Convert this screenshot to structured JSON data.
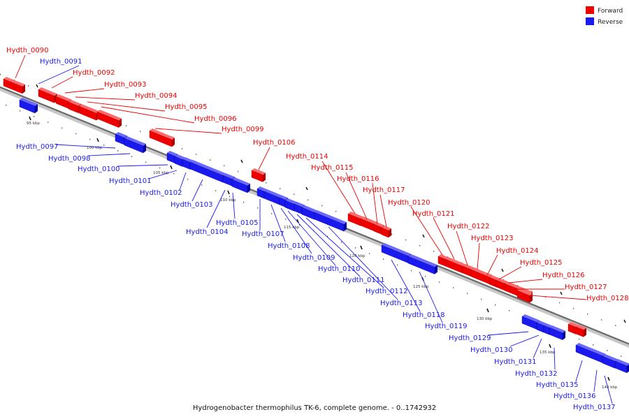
{
  "colors": {
    "forward": "#ee0000",
    "forward_dark": "#aa0000",
    "forward_light": "#ff6a6a",
    "reverse": "#1a1aee",
    "reverse_dark": "#0000a0",
    "reverse_light": "#6a6aff",
    "axis": "#777777"
  },
  "legend": [
    {
      "key": "forward",
      "label": "Forward"
    },
    {
      "key": "reverse",
      "label": "Reverse"
    }
  ],
  "caption": "Hydrogenobacter thermophilus TK-6, complete genome. - 0..1742932",
  "ticks": [
    "95 kbp",
    "100 kbp",
    "105 kbp",
    "110 kbp",
    "115 kbp",
    "120 kbp",
    "125 kbp",
    "130 kbp",
    "135 kbp",
    "140 kbp"
  ],
  "genes": [
    {
      "name": "Hydth_0090",
      "strand": "forward"
    },
    {
      "name": "Hydth_0091",
      "strand": "reverse"
    },
    {
      "name": "Hydth_0092",
      "strand": "forward"
    },
    {
      "name": "Hydth_0093",
      "strand": "forward"
    },
    {
      "name": "Hydth_0094",
      "strand": "forward"
    },
    {
      "name": "Hydth_0095",
      "strand": "forward"
    },
    {
      "name": "Hydth_0096",
      "strand": "forward"
    },
    {
      "name": "Hydth_0099",
      "strand": "forward"
    },
    {
      "name": "Hydth_0097",
      "strand": "reverse"
    },
    {
      "name": "Hydth_0098",
      "strand": "reverse"
    },
    {
      "name": "Hydth_0100",
      "strand": "reverse"
    },
    {
      "name": "Hydth_0101",
      "strand": "reverse"
    },
    {
      "name": "Hydth_0102",
      "strand": "reverse"
    },
    {
      "name": "Hydth_0103",
      "strand": "reverse"
    },
    {
      "name": "Hydth_0104",
      "strand": "reverse"
    },
    {
      "name": "Hydth_0105",
      "strand": "reverse"
    },
    {
      "name": "Hydth_0106",
      "strand": "forward"
    },
    {
      "name": "Hydth_0107",
      "strand": "reverse"
    },
    {
      "name": "Hydth_0108",
      "strand": "reverse"
    },
    {
      "name": "Hydth_0109",
      "strand": "reverse"
    },
    {
      "name": "Hydth_0110",
      "strand": "reverse"
    },
    {
      "name": "Hydth_0111",
      "strand": "reverse"
    },
    {
      "name": "Hydth_0112",
      "strand": "reverse"
    },
    {
      "name": "Hydth_0113",
      "strand": "reverse"
    },
    {
      "name": "Hydth_0114",
      "strand": "forward"
    },
    {
      "name": "Hydth_0115",
      "strand": "forward"
    },
    {
      "name": "Hydth_0116",
      "strand": "forward"
    },
    {
      "name": "Hydth_0117",
      "strand": "forward"
    },
    {
      "name": "Hydth_0118",
      "strand": "reverse"
    },
    {
      "name": "Hydth_0119",
      "strand": "reverse"
    },
    {
      "name": "Hydth_0120",
      "strand": "forward"
    },
    {
      "name": "Hydth_0121",
      "strand": "forward"
    },
    {
      "name": "Hydth_0122",
      "strand": "forward"
    },
    {
      "name": "Hydth_0123",
      "strand": "forward"
    },
    {
      "name": "Hydth_0124",
      "strand": "forward"
    },
    {
      "name": "Hydth_0125",
      "strand": "forward"
    },
    {
      "name": "Hydth_0126",
      "strand": "forward"
    },
    {
      "name": "Hydth_0127",
      "strand": "forward"
    },
    {
      "name": "Hydth_0128",
      "strand": "forward"
    },
    {
      "name": "Hydth_0129",
      "strand": "reverse"
    },
    {
      "name": "Hydth_0130",
      "strand": "reverse"
    },
    {
      "name": "Hydth_0131",
      "strand": "reverse"
    },
    {
      "name": "Hydth_0132",
      "strand": "reverse"
    },
    {
      "name": "Hydth_0135",
      "strand": "reverse"
    },
    {
      "name": "Hydth_0136",
      "strand": "reverse"
    },
    {
      "name": "Hydth_0137",
      "strand": "reverse"
    }
  ]
}
